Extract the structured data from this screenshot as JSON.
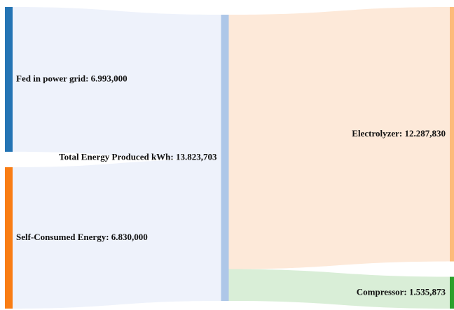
{
  "chart_data": {
    "type": "sankey",
    "nodes": [
      {
        "label": "Fed in power grid: 6.993,000",
        "value": 6993000,
        "color": "#2474b4"
      },
      {
        "label": "Self-Consumed Energy: 6.830,000",
        "value": 6830000,
        "color": "#f97d14"
      },
      {
        "label": "Total Energy Produced kWh: 13.823,703",
        "value": 13823703,
        "color": "#aec7e8"
      },
      {
        "label": "Electrolyzer: 12.287,830",
        "value": 12287830,
        "color": "#fdbb7a"
      },
      {
        "label": "Compressor: 1.535,873",
        "value": 1535873,
        "color": "#2ca02c"
      }
    ],
    "links": [
      {
        "source": 0,
        "target": 2,
        "value": 6993000,
        "color": "#eef2fb"
      },
      {
        "source": 1,
        "target": 2,
        "value": 6830000,
        "color": "#eef2fb"
      },
      {
        "source": 2,
        "target": 3,
        "value": 12287830,
        "color": "#fde9d9"
      },
      {
        "source": 2,
        "target": 4,
        "value": 1535873,
        "color": "#d9eed7"
      }
    ]
  }
}
